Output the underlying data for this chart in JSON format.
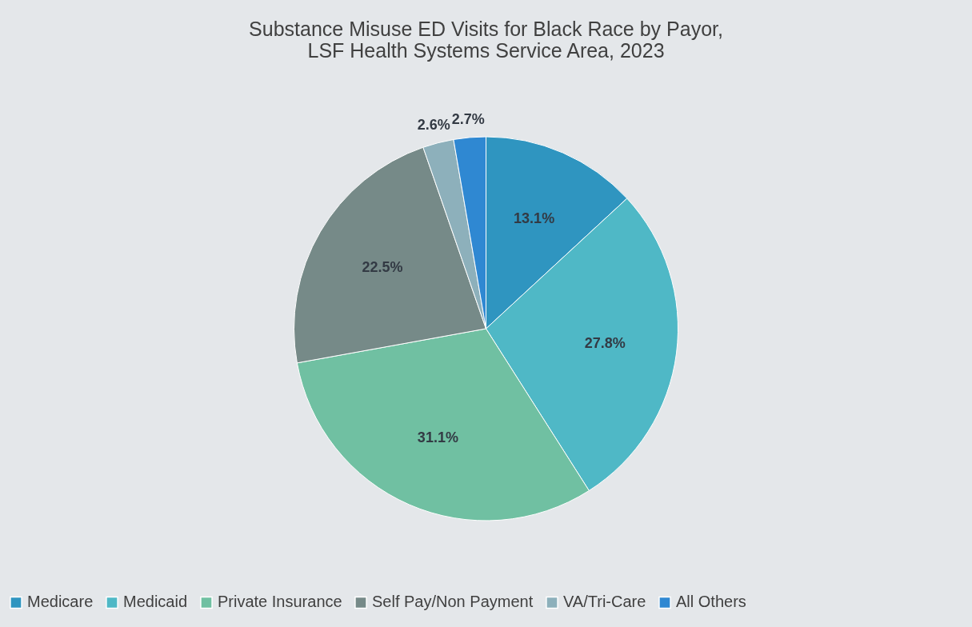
{
  "chart_data": {
    "type": "pie",
    "title": [
      "Substance Misuse ED Visits for Black Race by Payor,",
      "LSF Health Systems Service Area, 2023"
    ],
    "categories": [
      "Medicare",
      "Medicaid",
      "Private Insurance",
      "Self Pay/Non Payment",
      "VA/Tri-Care",
      "All Others"
    ],
    "values": [
      13.1,
      27.8,
      31.1,
      22.5,
      2.6,
      2.7
    ],
    "value_labels": [
      "13.1%",
      "27.8%",
      "31.1%",
      "22.5%",
      "2.6%",
      "2.7%"
    ],
    "colors": [
      "#2f95c0",
      "#4fb8c6",
      "#70c0a2",
      "#768a88",
      "#8db0bb",
      "#2f88d2"
    ],
    "legend": "bottom"
  }
}
